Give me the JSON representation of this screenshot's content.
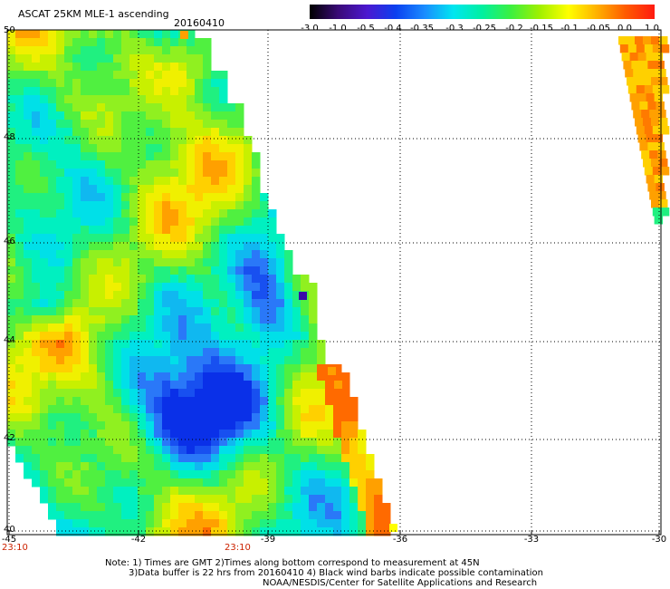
{
  "header": {
    "product": "ASCAT 25KM MLE-1 ascending",
    "date": "20160410"
  },
  "colorbar": {
    "labels": [
      "-3.0",
      "-1.0",
      "-0.5",
      "-0.4",
      "-0.35",
      "-0.3",
      "-0.25",
      "-0.2",
      "-0.15",
      "-0.1",
      "-0.05",
      "0.0",
      "1.0"
    ],
    "colors": [
      "#000000",
      "#3a0a78",
      "#4b18d0",
      "#0b40f0",
      "#1a8cff",
      "#00e6f0",
      "#00f0a0",
      "#3cf040",
      "#a0f000",
      "#ffff00",
      "#ffb000",
      "#ff5a00",
      "#ff1a10"
    ]
  },
  "axes": {
    "lat_labels": [
      "50",
      "48",
      "46",
      "44",
      "42",
      "40"
    ],
    "lon_labels": [
      "-45",
      "-42",
      "-39",
      "-36",
      "-33",
      "-30"
    ],
    "time_labels": [
      "23:10",
      "23:10"
    ]
  },
  "footer": {
    "line1": "Note: 1) Times are GMT 2)Times along bottom correspond to measurement at 45N",
    "line2": "3)Data buffer is 22 hrs from 20160410 4) Black wind barbs indicate possible contamination",
    "line3": "NOAA/NESDIS/Center for Satellite Applications and Research"
  }
}
